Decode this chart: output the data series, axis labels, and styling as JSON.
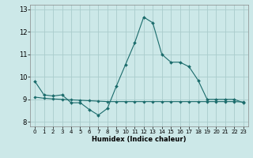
{
  "title": "",
  "xlabel": "Humidex (Indice chaleur)",
  "bg_color": "#cce8e8",
  "grid_color": "#aacccc",
  "line_color": "#1a6b6b",
  "xlim": [
    -0.5,
    23.5
  ],
  "ylim": [
    7.8,
    13.2
  ],
  "yticks": [
    8,
    9,
    10,
    11,
    12,
    13
  ],
  "xticks": [
    0,
    1,
    2,
    3,
    4,
    5,
    6,
    7,
    8,
    9,
    10,
    11,
    12,
    13,
    14,
    15,
    16,
    17,
    18,
    19,
    20,
    21,
    22,
    23
  ],
  "line1_x": [
    0,
    1,
    2,
    3,
    4,
    5,
    6,
    7,
    8,
    9,
    10,
    11,
    12,
    13,
    14,
    15,
    16,
    17,
    18,
    19,
    20,
    21,
    22,
    23
  ],
  "line1_y": [
    9.8,
    9.2,
    9.15,
    9.2,
    8.85,
    8.85,
    8.55,
    8.3,
    8.6,
    9.6,
    10.55,
    11.5,
    12.65,
    12.4,
    11.0,
    10.65,
    10.65,
    10.45,
    9.85,
    9.0,
    9.0,
    9.0,
    9.0,
    8.85
  ],
  "line2_x": [
    0,
    1,
    2,
    3,
    4,
    5,
    6,
    7,
    8,
    9,
    10,
    11,
    12,
    13,
    14,
    15,
    16,
    17,
    18,
    19,
    20,
    21,
    22,
    23
  ],
  "line2_y": [
    9.1,
    9.05,
    9.02,
    9.0,
    8.98,
    8.96,
    8.94,
    8.92,
    8.9,
    8.9,
    8.9,
    8.9,
    8.9,
    8.9,
    8.9,
    8.9,
    8.9,
    8.9,
    8.9,
    8.9,
    8.9,
    8.9,
    8.9,
    8.88
  ],
  "xlabel_fontsize": 6,
  "ytick_fontsize": 6,
  "xtick_fontsize": 5
}
